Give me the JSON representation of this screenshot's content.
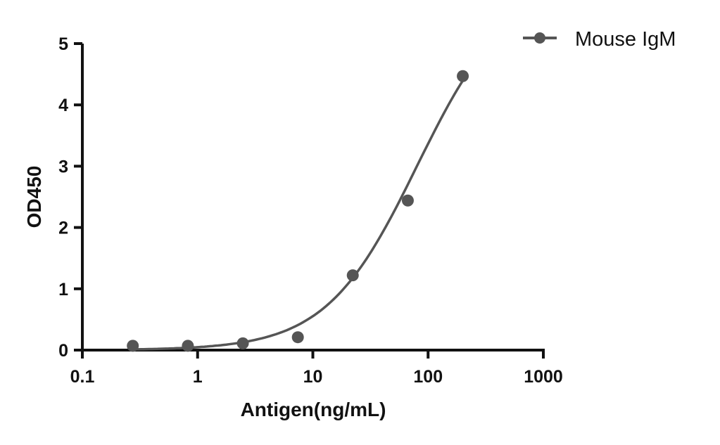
{
  "chart_data": {
    "type": "scatter",
    "title": "",
    "xlabel": "Antigen(ng/mL)",
    "ylabel": "OD450",
    "xscale": "log",
    "xlim": [
      0.1,
      1000
    ],
    "ylim": [
      0,
      5
    ],
    "xticks": [
      "0.1",
      "1",
      "10",
      "100",
      "1000"
    ],
    "yticks": [
      "0",
      "1",
      "2",
      "3",
      "4",
      "5"
    ],
    "grid": false,
    "legend": {
      "position": "top-right",
      "entries": [
        "Mouse IgM"
      ]
    },
    "series": [
      {
        "name": "Mouse IgM",
        "color": "#555555",
        "x": [
          0.274,
          0.823,
          2.47,
          7.41,
          22.2,
          66.7,
          200
        ],
        "y": [
          0.07,
          0.07,
          0.11,
          0.21,
          1.22,
          2.44,
          4.47
        ],
        "fit": {
          "model": "4PL",
          "bottom": 0,
          "top": 6,
          "ec50": 80,
          "hill": 1.1
        }
      }
    ]
  }
}
